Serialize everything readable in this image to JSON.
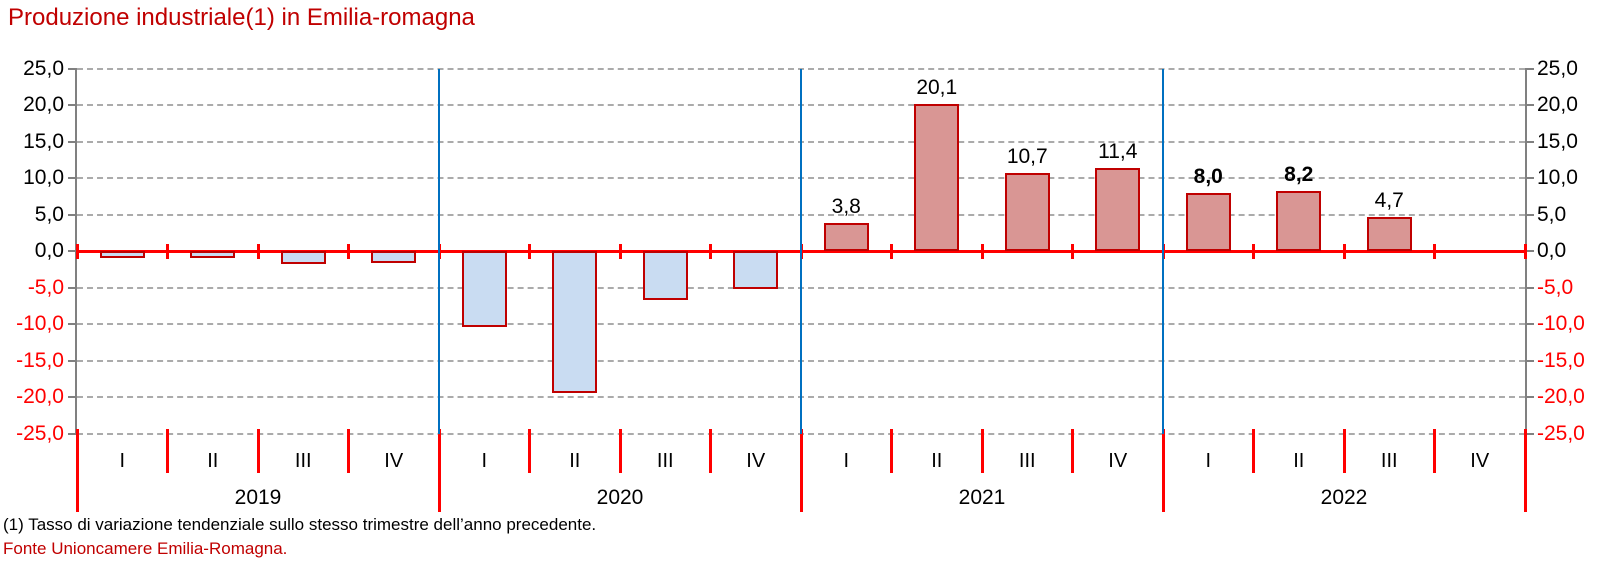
{
  "title": "Produzione industriale(1) in Emilia-romagna",
  "footnote": "(1) Tasso di variazione tendenziale sullo stesso trimestre dell’anno precedente.",
  "source": "Fonte Unioncamere Emilia-Romagna.",
  "colors": {
    "title_red": "#C00000",
    "axis_gray": "#808080",
    "gridline_gray": "#ABABAB",
    "zero_line_red": "#FF0000",
    "negative_tick_label_red": "#FF0000",
    "year_separator_blue": "#0070C0",
    "bar_fill_positive": "#D99694",
    "bar_fill_negative": "#C9DCF2",
    "bar_border": "#C00000"
  },
  "chart_data": {
    "type": "bar",
    "title": "Produzione industriale(1) in Emilia-romagna",
    "years": [
      "2019",
      "2020",
      "2021",
      "2022"
    ],
    "quarters": [
      "I",
      "II",
      "III",
      "IV"
    ],
    "categories": [
      "2019-I",
      "2019-II",
      "2019-III",
      "2019-IV",
      "2020-I",
      "2020-II",
      "2020-III",
      "2020-IV",
      "2021-I",
      "2021-II",
      "2021-III",
      "2021-IV",
      "2022-I",
      "2022-II",
      "2022-III",
      "2022-IV"
    ],
    "values": [
      -0.9,
      -0.9,
      -1.8,
      -1.6,
      -10.4,
      -19.4,
      -6.7,
      -5.2,
      3.8,
      20.1,
      10.7,
      11.4,
      8.0,
      8.2,
      4.7,
      null
    ],
    "value_labels": [
      "",
      "",
      "",
      "",
      "",
      "",
      "",
      "",
      "3,8",
      "20,1",
      "10,7",
      "11,4",
      "8,0",
      "8,2",
      "4,7",
      ""
    ],
    "value_label_bold": [
      false,
      false,
      false,
      false,
      false,
      false,
      false,
      false,
      false,
      false,
      false,
      false,
      true,
      true,
      false,
      false
    ],
    "ylim": [
      -25,
      25
    ],
    "ytick_step": 5,
    "ytick_labels": [
      "25,0",
      "20,0",
      "15,0",
      "10,0",
      "5,0",
      "0,0",
      "-5,0",
      "-10,0",
      "-15,0",
      "-20,0",
      "-25,0"
    ],
    "grid": "horizontal dashed, both left and right value axes, red solid zero line",
    "legend": "none",
    "xlabel": "",
    "ylabel": ""
  }
}
